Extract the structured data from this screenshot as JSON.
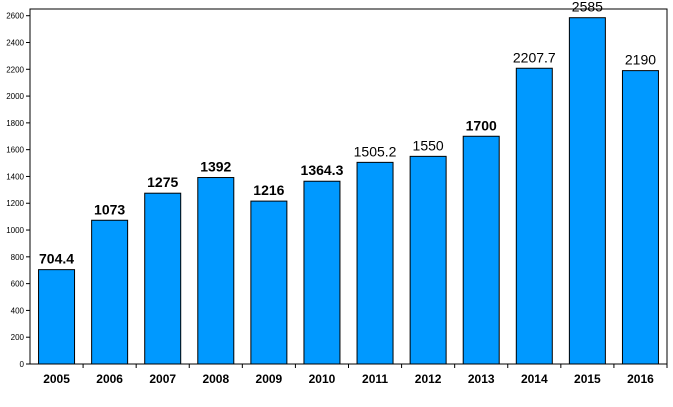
{
  "chart_data": {
    "type": "bar",
    "categories": [
      "2005",
      "2006",
      "2007",
      "2008",
      "2009",
      "2010",
      "2011",
      "2012",
      "2013",
      "2014",
      "2015",
      "2016"
    ],
    "values": [
      704.4,
      1073,
      1275,
      1392,
      1216,
      1364.3,
      1505.2,
      1550,
      1700,
      2207.7,
      2585,
      2190
    ],
    "data_labels": [
      "704.4",
      "1073",
      "1275",
      "1392",
      "1216",
      "1364.3",
      "1505.2",
      "1550",
      "1700",
      "2207.7",
      "2585",
      "2190"
    ],
    "label_bold": [
      true,
      true,
      true,
      true,
      true,
      true,
      false,
      false,
      true,
      false,
      false,
      false
    ],
    "yticks": [
      0,
      200,
      400,
      600,
      800,
      1000,
      1200,
      1400,
      1600,
      1800,
      2000,
      2200,
      2400,
      2600
    ],
    "ylim": [
      0,
      2650
    ],
    "title": "",
    "xlabel": "",
    "ylabel": "",
    "grid": false,
    "legend": "none",
    "bar_color": "#0099ff",
    "bar_edge_color": "#000000"
  }
}
